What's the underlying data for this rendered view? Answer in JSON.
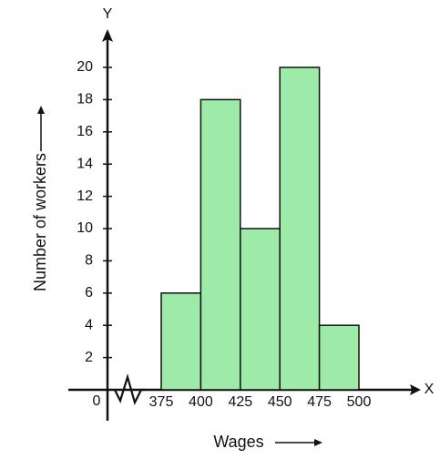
{
  "chart_data": {
    "type": "histogram",
    "x_label": "Wages",
    "y_label": "Number of workers",
    "x_axis_name": "X",
    "y_axis_name": "Y",
    "bins": [
      375,
      400,
      425,
      450,
      475,
      500
    ],
    "values": [
      6,
      18,
      10,
      20,
      4
    ],
    "color": "#9eeba9",
    "xlim": [
      350,
      525
    ],
    "ylim": [
      0,
      22
    ],
    "yticks": [
      0,
      2,
      4,
      6,
      8,
      10,
      12,
      14,
      16,
      18,
      20
    ]
  }
}
